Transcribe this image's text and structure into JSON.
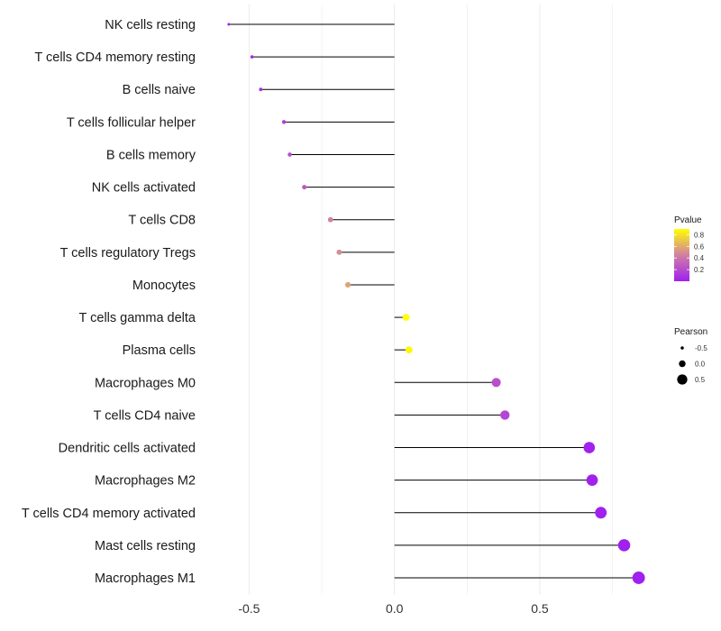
{
  "chart_data": {
    "type": "lollipop",
    "title": "",
    "xlabel": "",
    "ylabel": "",
    "xlim": [
      -0.65,
      0.9
    ],
    "baseline": 0,
    "x_ticks": [
      -0.5,
      0.0,
      0.5
    ],
    "x_tick_labels": [
      "-0.5",
      "0.0",
      "0.5"
    ],
    "grid": "vertical",
    "colors": {
      "low": "#a020f0",
      "mid": "#d17fa2",
      "high": "#ffff00",
      "stem": "#000000",
      "grid": "#ebebeb",
      "size_key": "#000000"
    },
    "series": [
      {
        "name": "NK cells resting",
        "pearson": -0.57,
        "pvalue": 0.02
      },
      {
        "name": "T cells CD4 memory resting",
        "pearson": -0.49,
        "pvalue": 0.05
      },
      {
        "name": "B cells naive",
        "pearson": -0.46,
        "pvalue": 0.08
      },
      {
        "name": "T cells follicular helper",
        "pearson": -0.38,
        "pvalue": 0.16
      },
      {
        "name": "B cells memory",
        "pearson": -0.36,
        "pvalue": 0.21
      },
      {
        "name": "NK cells activated",
        "pearson": -0.31,
        "pvalue": 0.27
      },
      {
        "name": "T cells CD8",
        "pearson": -0.22,
        "pvalue": 0.45
      },
      {
        "name": "T cells regulatory  Tregs ",
        "pearson": -0.19,
        "pvalue": 0.5
      },
      {
        "name": "Monocytes",
        "pearson": -0.16,
        "pvalue": 0.58
      },
      {
        "name": "T cells gamma delta",
        "pearson": 0.04,
        "pvalue": 0.9
      },
      {
        "name": "Plasma cells",
        "pearson": 0.05,
        "pvalue": 0.88
      },
      {
        "name": "Macrophages M0",
        "pearson": 0.35,
        "pvalue": 0.22
      },
      {
        "name": "T cells CD4 naive",
        "pearson": 0.38,
        "pvalue": 0.18
      },
      {
        "name": "Dendritic cells activated",
        "pearson": 0.67,
        "pvalue": 0.01
      },
      {
        "name": "Macrophages M2",
        "pearson": 0.68,
        "pvalue": 0.01
      },
      {
        "name": "T cells CD4 memory activated",
        "pearson": 0.71,
        "pvalue": 0.005
      },
      {
        "name": "Mast cells resting",
        "pearson": 0.79,
        "pvalue": 0.002
      },
      {
        "name": "Macrophages M1",
        "pearson": 0.84,
        "pvalue": 0.001
      }
    ],
    "legend": {
      "color": {
        "title": "Pvalue",
        "range": [
          0.0,
          0.9
        ],
        "tick_values": [
          0.2,
          0.4,
          0.6,
          0.8
        ],
        "tick_labels": [
          "0.2",
          "0.4",
          "0.6",
          "0.8"
        ]
      },
      "size": {
        "title": "Pearson",
        "values": [
          -0.5,
          0.0,
          0.5
        ],
        "labels": [
          "-0.5",
          "0.0",
          "0.5"
        ]
      }
    }
  }
}
